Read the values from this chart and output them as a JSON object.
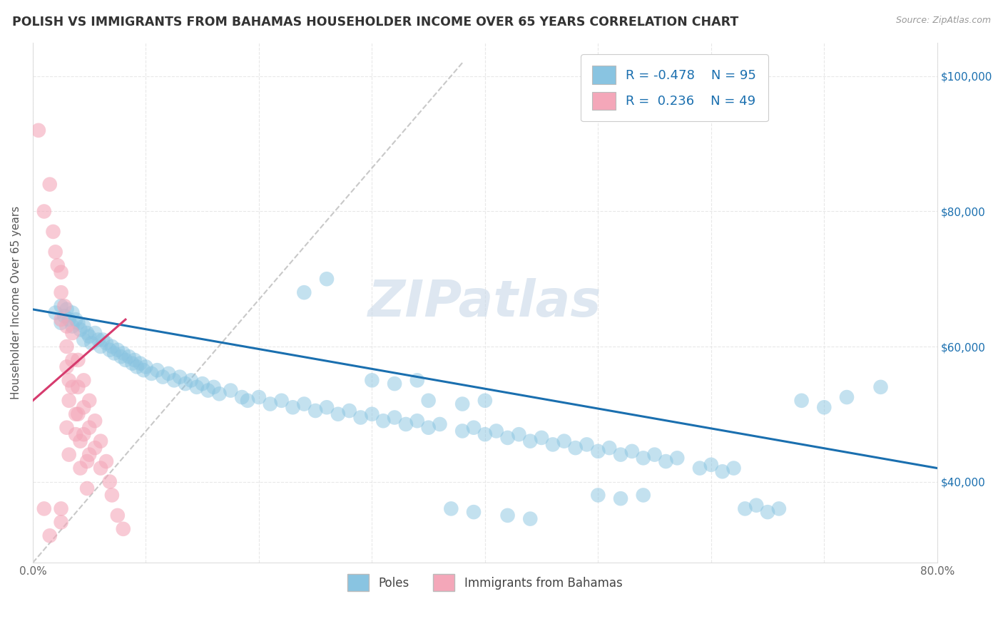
{
  "title": "POLISH VS IMMIGRANTS FROM BAHAMAS HOUSEHOLDER INCOME OVER 65 YEARS CORRELATION CHART",
  "source": "Source: ZipAtlas.com",
  "ylabel": "Householder Income Over 65 years",
  "xlim": [
    0.0,
    0.8
  ],
  "ylim": [
    28000,
    105000
  ],
  "yticks": [
    40000,
    60000,
    80000,
    100000
  ],
  "ytick_labels": [
    "$40,000",
    "$60,000",
    "$80,000",
    "$100,000"
  ],
  "xticks": [
    0.0,
    0.1,
    0.2,
    0.3,
    0.4,
    0.5,
    0.6,
    0.7,
    0.8
  ],
  "xtick_labels": [
    "0.0%",
    "",
    "",
    "",
    "",
    "",
    "",
    "",
    "80.0%"
  ],
  "color_blue": "#89c4e1",
  "color_pink": "#f4a7b9",
  "color_blue_line": "#1a6faf",
  "color_pink_line": "#d63b6e",
  "color_diag": "#bbbbbb",
  "label_blue": "Poles",
  "label_pink": "Immigrants from Bahamas",
  "blue_scatter": [
    [
      0.02,
      65000
    ],
    [
      0.025,
      66000
    ],
    [
      0.025,
      63500
    ],
    [
      0.028,
      64500
    ],
    [
      0.03,
      65500
    ],
    [
      0.032,
      64000
    ],
    [
      0.035,
      65000
    ],
    [
      0.035,
      63000
    ],
    [
      0.038,
      64000
    ],
    [
      0.04,
      63500
    ],
    [
      0.042,
      62500
    ],
    [
      0.045,
      63000
    ],
    [
      0.045,
      61000
    ],
    [
      0.048,
      62000
    ],
    [
      0.05,
      61500
    ],
    [
      0.052,
      60500
    ],
    [
      0.055,
      62000
    ],
    [
      0.058,
      61000
    ],
    [
      0.06,
      60000
    ],
    [
      0.062,
      61000
    ],
    [
      0.065,
      60500
    ],
    [
      0.068,
      59500
    ],
    [
      0.07,
      60000
    ],
    [
      0.072,
      59000
    ],
    [
      0.075,
      59500
    ],
    [
      0.078,
      58500
    ],
    [
      0.08,
      59000
    ],
    [
      0.082,
      58000
    ],
    [
      0.085,
      58500
    ],
    [
      0.088,
      57500
    ],
    [
      0.09,
      58000
    ],
    [
      0.092,
      57000
    ],
    [
      0.095,
      57500
    ],
    [
      0.098,
      56500
    ],
    [
      0.1,
      57000
    ],
    [
      0.105,
      56000
    ],
    [
      0.11,
      56500
    ],
    [
      0.115,
      55500
    ],
    [
      0.12,
      56000
    ],
    [
      0.125,
      55000
    ],
    [
      0.13,
      55500
    ],
    [
      0.135,
      54500
    ],
    [
      0.14,
      55000
    ],
    [
      0.145,
      54000
    ],
    [
      0.15,
      54500
    ],
    [
      0.155,
      53500
    ],
    [
      0.16,
      54000
    ],
    [
      0.165,
      53000
    ],
    [
      0.175,
      53500
    ],
    [
      0.185,
      52500
    ],
    [
      0.19,
      52000
    ],
    [
      0.2,
      52500
    ],
    [
      0.21,
      51500
    ],
    [
      0.22,
      52000
    ],
    [
      0.23,
      51000
    ],
    [
      0.24,
      51500
    ],
    [
      0.25,
      50500
    ],
    [
      0.26,
      51000
    ],
    [
      0.27,
      50000
    ],
    [
      0.28,
      50500
    ],
    [
      0.29,
      49500
    ],
    [
      0.3,
      50000
    ],
    [
      0.31,
      49000
    ],
    [
      0.32,
      49500
    ],
    [
      0.33,
      48500
    ],
    [
      0.34,
      49000
    ],
    [
      0.35,
      48000
    ],
    [
      0.36,
      48500
    ],
    [
      0.24,
      68000
    ],
    [
      0.26,
      70000
    ],
    [
      0.38,
      47500
    ],
    [
      0.39,
      48000
    ],
    [
      0.4,
      47000
    ],
    [
      0.41,
      47500
    ],
    [
      0.42,
      46500
    ],
    [
      0.43,
      47000
    ],
    [
      0.44,
      46000
    ],
    [
      0.45,
      46500
    ],
    [
      0.46,
      45500
    ],
    [
      0.47,
      46000
    ],
    [
      0.48,
      45000
    ],
    [
      0.49,
      45500
    ],
    [
      0.5,
      44500
    ],
    [
      0.51,
      45000
    ],
    [
      0.52,
      44000
    ],
    [
      0.53,
      44500
    ],
    [
      0.54,
      43500
    ],
    [
      0.55,
      44000
    ],
    [
      0.56,
      43000
    ],
    [
      0.57,
      43500
    ],
    [
      0.37,
      36000
    ],
    [
      0.39,
      35500
    ],
    [
      0.42,
      35000
    ],
    [
      0.44,
      34500
    ],
    [
      0.59,
      42000
    ],
    [
      0.6,
      42500
    ],
    [
      0.61,
      41500
    ],
    [
      0.62,
      42000
    ],
    [
      0.63,
      36000
    ],
    [
      0.64,
      36500
    ],
    [
      0.65,
      35500
    ],
    [
      0.66,
      36000
    ],
    [
      0.68,
      52000
    ],
    [
      0.7,
      51000
    ],
    [
      0.72,
      52500
    ],
    [
      0.75,
      54000
    ],
    [
      0.5,
      38000
    ],
    [
      0.52,
      37500
    ],
    [
      0.54,
      38000
    ],
    [
      0.35,
      52000
    ],
    [
      0.38,
      51500
    ],
    [
      0.4,
      52000
    ],
    [
      0.3,
      55000
    ],
    [
      0.32,
      54500
    ],
    [
      0.34,
      55000
    ]
  ],
  "pink_scatter": [
    [
      0.005,
      92000
    ],
    [
      0.01,
      80000
    ],
    [
      0.015,
      84000
    ],
    [
      0.018,
      77000
    ],
    [
      0.02,
      74000
    ],
    [
      0.022,
      72000
    ],
    [
      0.025,
      68000
    ],
    [
      0.025,
      64000
    ],
    [
      0.025,
      71000
    ],
    [
      0.028,
      66000
    ],
    [
      0.03,
      63000
    ],
    [
      0.03,
      60000
    ],
    [
      0.03,
      57000
    ],
    [
      0.032,
      55000
    ],
    [
      0.032,
      52000
    ],
    [
      0.035,
      62000
    ],
    [
      0.035,
      58000
    ],
    [
      0.035,
      54000
    ],
    [
      0.038,
      50000
    ],
    [
      0.038,
      47000
    ],
    [
      0.04,
      58000
    ],
    [
      0.04,
      54000
    ],
    [
      0.04,
      50000
    ],
    [
      0.042,
      46000
    ],
    [
      0.042,
      42000
    ],
    [
      0.045,
      55000
    ],
    [
      0.045,
      51000
    ],
    [
      0.045,
      47000
    ],
    [
      0.048,
      43000
    ],
    [
      0.048,
      39000
    ],
    [
      0.05,
      52000
    ],
    [
      0.05,
      48000
    ],
    [
      0.05,
      44000
    ],
    [
      0.055,
      49000
    ],
    [
      0.055,
      45000
    ],
    [
      0.06,
      46000
    ],
    [
      0.06,
      42000
    ],
    [
      0.065,
      43000
    ],
    [
      0.068,
      40000
    ],
    [
      0.07,
      38000
    ],
    [
      0.075,
      35000
    ],
    [
      0.08,
      33000
    ],
    [
      0.01,
      36000
    ],
    [
      0.015,
      32000
    ],
    [
      0.025,
      36000
    ],
    [
      0.025,
      34000
    ],
    [
      0.03,
      48000
    ],
    [
      0.032,
      44000
    ]
  ],
  "blue_line_x": [
    0.0,
    0.8
  ],
  "blue_line_y": [
    65500,
    42000
  ],
  "pink_line_x": [
    0.0,
    0.082
  ],
  "pink_line_y": [
    52000,
    64000
  ],
  "diag_line_x": [
    0.0,
    0.38
  ],
  "diag_line_y": [
    28000,
    102000
  ],
  "watermark": "ZIPatlas",
  "watermark_color": "#c8d8e8",
  "background_color": "#ffffff",
  "grid_color": "#e8e8e8"
}
